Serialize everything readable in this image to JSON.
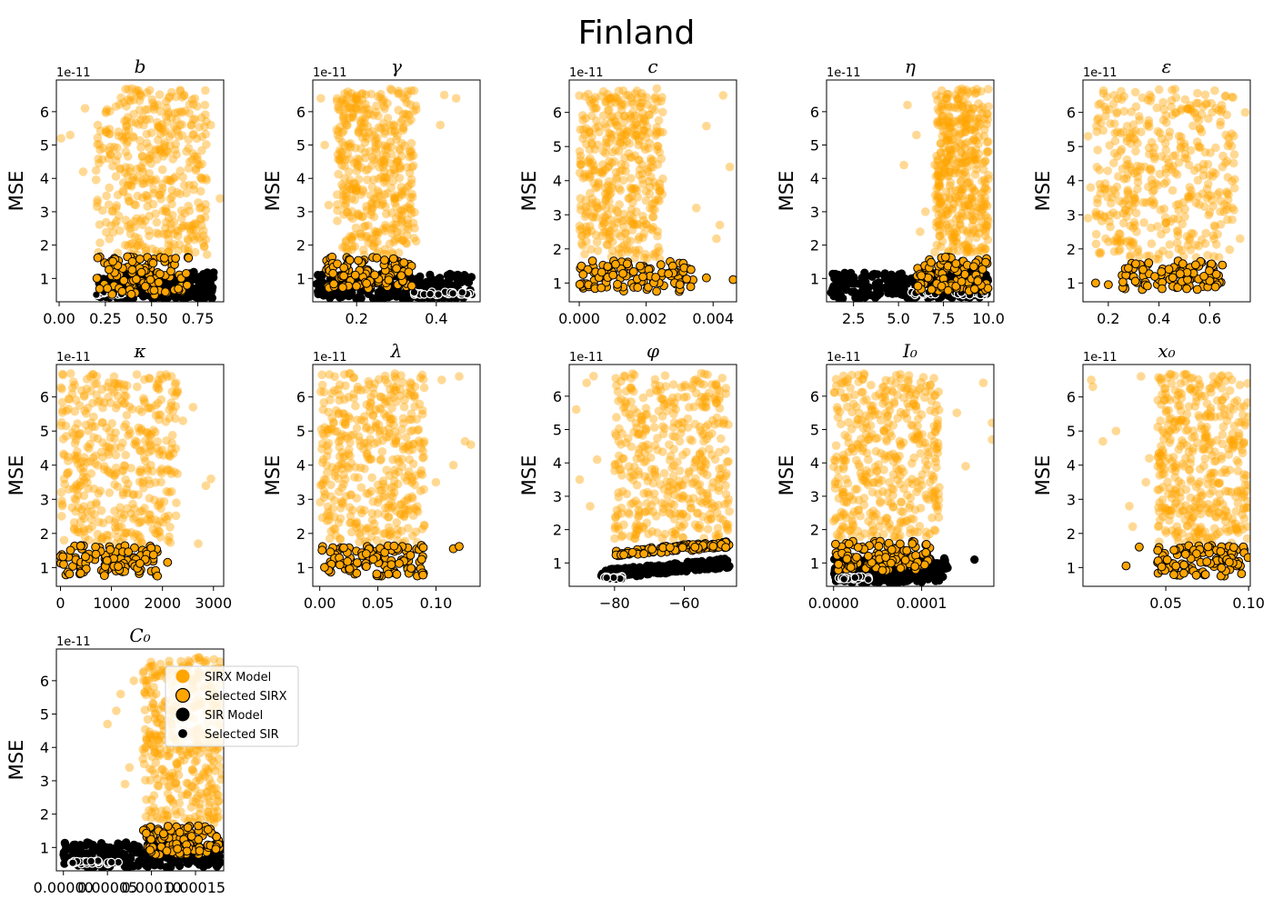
{
  "figure": {
    "title": "Finland"
  },
  "legend": {
    "placement": "right of last panel",
    "entries": [
      {
        "label": "SIRX Model",
        "marker": "large",
        "color": "#ffa500",
        "edge": "none"
      },
      {
        "label": "Selected SIRX",
        "marker": "large",
        "color": "#ffa500",
        "edge": "#000000"
      },
      {
        "label": "SIR Model",
        "marker": "large",
        "color": "#000000",
        "edge": "none"
      },
      {
        "label": "Selected SIR",
        "marker": "small",
        "color": "#000000",
        "edge": "#ffffff"
      }
    ]
  },
  "colors": {
    "sirx": "#ffa500",
    "sir": "#000000",
    "selected_sir_edge": "#ffffff",
    "axis": "#000000"
  },
  "chart_data": [
    {
      "type": "scatter",
      "title": "b",
      "ylabel": "MSE",
      "yoffset": "1e-11",
      "xlim": [
        -0.015,
        0.89
      ],
      "ylim": [
        0.3,
        6.95
      ],
      "xticks": [
        "0.00",
        "0.25",
        "0.50",
        "0.75"
      ],
      "xtick_values": [
        0,
        0.25,
        0.5,
        0.75
      ],
      "yticks": [
        "1",
        "2",
        "3",
        "4",
        "5",
        "6"
      ],
      "ytick_values": [
        1,
        2,
        3,
        4,
        5,
        6
      ],
      "sirx": {
        "x": [
          0.2,
          0.8
        ],
        "y": [
          1.7,
          6.7
        ],
        "outliers": [
          [
            0.01,
            5.2
          ],
          [
            0.06,
            5.3
          ],
          [
            0.14,
            6.1
          ],
          [
            0.13,
            4.2
          ],
          [
            0.87,
            3.4
          ],
          [
            0.82,
            5.6
          ]
        ]
      },
      "selected_sirx": {
        "x": [
          0.2,
          0.7
        ],
        "y": [
          0.5,
          1.65
        ]
      },
      "sir": {
        "x": [
          0.2,
          0.84
        ],
        "y": [
          0.4,
          1.2
        ]
      },
      "selected_sir": {
        "x": [
          0.2,
          0.37
        ],
        "y": [
          0.5,
          0.6
        ]
      }
    },
    {
      "type": "scatter",
      "title": "γ",
      "ylabel": "MSE",
      "yoffset": "1e-11",
      "xlim": [
        0.09,
        0.51
      ],
      "ylim": [
        0.3,
        6.95
      ],
      "xticks": [
        "0.2",
        "0.4"
      ],
      "xtick_values": [
        0.2,
        0.4
      ],
      "yticks": [
        "1",
        "2",
        "3",
        "4",
        "5",
        "6"
      ],
      "ytick_values": [
        1,
        2,
        3,
        4,
        5,
        6
      ],
      "sirx": {
        "x": [
          0.15,
          0.35
        ],
        "y": [
          1.7,
          6.7
        ],
        "outliers": [
          [
            0.12,
            5.0
          ],
          [
            0.11,
            6.4
          ],
          [
            0.13,
            3.2
          ],
          [
            0.42,
            6.5
          ],
          [
            0.41,
            5.6
          ],
          [
            0.45,
            6.4
          ]
        ]
      },
      "selected_sirx": {
        "x": [
          0.12,
          0.34
        ],
        "y": [
          0.7,
          1.65
        ]
      },
      "sir": {
        "x": [
          0.1,
          0.49
        ],
        "y": [
          0.4,
          1.15
        ]
      },
      "selected_sir": {
        "x": [
          0.33,
          0.5
        ],
        "y": [
          0.5,
          0.6
        ]
      }
    },
    {
      "type": "scatter",
      "title": "c",
      "ylabel": "MSE",
      "yoffset": "1e-11",
      "xlim": [
        -0.0003,
        0.0047
      ],
      "ylim": [
        0.45,
        6.95
      ],
      "xticks": [
        "0.000",
        "0.002",
        "0.004"
      ],
      "xtick_values": [
        0,
        0.002,
        0.004
      ],
      "yticks": [
        "1",
        "2",
        "3",
        "4",
        "5",
        "6"
      ],
      "ytick_values": [
        1,
        2,
        3,
        4,
        5,
        6
      ],
      "sirx": {
        "x": [
          0.0,
          0.0025
        ],
        "y": [
          1.7,
          6.7
        ],
        "outliers": [
          [
            0.0043,
            6.5
          ],
          [
            0.0045,
            4.4
          ],
          [
            0.0041,
            2.3
          ],
          [
            0.0038,
            5.6
          ],
          [
            0.0035,
            3.2
          ],
          [
            0.0042,
            2.7
          ]
        ]
      },
      "selected_sirx": {
        "x": [
          0.0,
          0.0034
        ],
        "y": [
          0.75,
          1.65
        ],
        "outliers": [
          [
            0.0046,
            1.1
          ],
          [
            0.0038,
            1.15
          ]
        ]
      },
      "sir": null,
      "selected_sir": null
    },
    {
      "type": "scatter",
      "title": "η",
      "ylabel": "MSE",
      "yoffset": "1e-11",
      "xlim": [
        1.0,
        10.3
      ],
      "ylim": [
        0.3,
        6.95
      ],
      "xticks": [
        "2.5",
        "5.0",
        "7.5",
        "10.0"
      ],
      "xtick_values": [
        2.5,
        5.0,
        7.5,
        10.0
      ],
      "yticks": [
        "1",
        "2",
        "3",
        "4",
        "5",
        "6"
      ],
      "ytick_values": [
        1,
        2,
        3,
        4,
        5,
        6
      ],
      "sirx": {
        "x": [
          7.0,
          10.0
        ],
        "y": [
          1.7,
          6.7
        ],
        "outliers": [
          [
            5.5,
            6.2
          ],
          [
            6.0,
            5.3
          ],
          [
            5.3,
            4.4
          ],
          [
            6.5,
            3.0
          ],
          [
            6.2,
            2.4
          ]
        ]
      },
      "selected_sirx": {
        "x": [
          6.0,
          10.0
        ],
        "y": [
          0.6,
          1.65
        ]
      },
      "sir": {
        "x": [
          1.2,
          10.0
        ],
        "y": [
          0.4,
          1.2
        ]
      },
      "selected_sir": {
        "x": [
          5.2,
          10.0
        ],
        "y": [
          0.5,
          0.6
        ]
      }
    },
    {
      "type": "scatter",
      "title": "ε",
      "ylabel": "MSE",
      "yoffset": "1e-11",
      "xlim": [
        0.1,
        0.76
      ],
      "ylim": [
        0.45,
        6.95
      ],
      "xticks": [
        "0.2",
        "0.4",
        "0.6"
      ],
      "xtick_values": [
        0.2,
        0.4,
        0.6
      ],
      "yticks": [
        "1",
        "2",
        "3",
        "4",
        "5",
        "6"
      ],
      "ytick_values": [
        1,
        2,
        3,
        4,
        5,
        6
      ],
      "sirx": {
        "x": [
          0.15,
          0.7
        ],
        "y": [
          1.7,
          6.7
        ],
        "outliers": [
          [
            0.74,
            6.0
          ],
          [
            0.12,
            5.3
          ],
          [
            0.13,
            3.8
          ],
          [
            0.12,
            2.9
          ],
          [
            0.72,
            2.3
          ]
        ]
      },
      "selected_sirx": {
        "x": [
          0.25,
          0.65
        ],
        "y": [
          0.8,
          1.65
        ],
        "outliers": [
          [
            0.15,
            1.0
          ],
          [
            0.2,
            0.95
          ]
        ]
      },
      "sir": null,
      "selected_sir": null
    },
    {
      "type": "scatter",
      "title": "κ",
      "ylabel": "MSE",
      "yoffset": "1e-11",
      "xlim": [
        -80,
        3200
      ],
      "ylim": [
        0.45,
        6.95
      ],
      "xticks": [
        "0",
        "1000",
        "2000",
        "3000"
      ],
      "xtick_values": [
        0,
        1000,
        2000,
        3000
      ],
      "yticks": [
        "1",
        "2",
        "3",
        "4",
        "5",
        "6"
      ],
      "ytick_values": [
        1,
        2,
        3,
        4,
        5,
        6
      ],
      "sirx": {
        "x": [
          0,
          2300
        ],
        "y": [
          1.7,
          6.7
        ],
        "outliers": [
          [
            2700,
            1.7
          ],
          [
            2850,
            3.4
          ],
          [
            2950,
            3.6
          ],
          [
            2600,
            5.7
          ],
          [
            2400,
            5.3
          ]
        ]
      },
      "selected_sirx": {
        "x": [
          0,
          1900
        ],
        "y": [
          0.75,
          1.65
        ],
        "outliers": [
          [
            2100,
            1.15
          ],
          [
            1900,
            0.75
          ]
        ]
      },
      "sir": null,
      "selected_sir": null
    },
    {
      "type": "scatter",
      "title": "λ",
      "ylabel": "MSE",
      "yoffset": "1e-11",
      "xlim": [
        -0.006,
        0.138
      ],
      "ylim": [
        0.45,
        6.95
      ],
      "xticks": [
        "0.00",
        "0.05",
        "0.10"
      ],
      "xtick_values": [
        0,
        0.05,
        0.1
      ],
      "yticks": [
        "1",
        "2",
        "3",
        "4",
        "5",
        "6"
      ],
      "ytick_values": [
        1,
        2,
        3,
        4,
        5,
        6
      ],
      "sirx": {
        "x": [
          0.0,
          0.09
        ],
        "y": [
          1.7,
          6.7
        ],
        "outliers": [
          [
            0.13,
            4.6
          ],
          [
            0.125,
            4.7
          ],
          [
            0.12,
            6.6
          ],
          [
            0.105,
            6.5
          ],
          [
            0.115,
            4.0
          ],
          [
            0.1,
            3.5
          ]
        ]
      },
      "selected_sirx": {
        "x": [
          0.0,
          0.09
        ],
        "y": [
          0.75,
          1.65
        ],
        "outliers": [
          [
            0.115,
            1.55
          ],
          [
            0.12,
            1.62
          ]
        ]
      },
      "sir": null,
      "selected_sir": null
    },
    {
      "type": "scatter",
      "title": "φ",
      "ylabel": "MSE",
      "yoffset": "1e-11",
      "xlim": [
        -93,
        -45
      ],
      "ylim": [
        0.3,
        6.95
      ],
      "xticks": [
        "−80",
        "−60"
      ],
      "xtick_values": [
        -80,
        -60
      ],
      "yticks": [
        "1",
        "2",
        "3",
        "4",
        "5",
        "6"
      ],
      "ytick_values": [
        1,
        2,
        3,
        4,
        5,
        6
      ],
      "sirx": {
        "x": [
          -80,
          -47
        ],
        "y": [
          1.7,
          6.7
        ],
        "outliers": [
          [
            -91,
            5.6
          ],
          [
            -90,
            3.5
          ],
          [
            -88,
            6.4
          ],
          [
            -86,
            6.6
          ],
          [
            -87,
            2.7
          ],
          [
            -85,
            4.1
          ]
        ]
      },
      "selected_sirx": {
        "x": [
          -80,
          -47
        ],
        "y": [
          1.2,
          1.65
        ],
        "trend": "rising"
      },
      "sir": {
        "x": [
          -84,
          -47
        ],
        "y": [
          0.5,
          1.15
        ],
        "trend": "rising"
      },
      "selected_sir": {
        "x": [
          -83,
          -77
        ],
        "y": [
          0.5,
          0.6
        ]
      }
    },
    {
      "type": "scatter",
      "title": "I₀",
      "ylabel": "MSE",
      "yoffset": "1e-11",
      "xlim": [
        -8e-06,
        0.000182
      ],
      "ylim": [
        0.3,
        6.95
      ],
      "xticks": [
        "0.0000",
        "0.0001"
      ],
      "xtick_values": [
        0,
        0.0001
      ],
      "yticks": [
        "1",
        "2",
        "3",
        "4",
        "5",
        "6"
      ],
      "ytick_values": [
        1,
        2,
        3,
        4,
        5,
        6
      ],
      "sirx": {
        "x": [
          0.0,
          0.00012
        ],
        "y": [
          1.7,
          6.7
        ],
        "outliers": [
          [
            0.00018,
            5.2
          ],
          [
            0.00018,
            4.7
          ],
          [
            0.00017,
            6.4
          ],
          [
            0.00015,
            3.9
          ],
          [
            0.00014,
            5.5
          ]
        ]
      },
      "selected_sirx": {
        "x": [
          0.0,
          0.00011
        ],
        "y": [
          0.75,
          1.65
        ]
      },
      "sir": {
        "x": [
          0.0,
          0.00013
        ],
        "y": [
          0.4,
          1.15
        ],
        "outliers": [
          [
            0.00016,
            1.1
          ]
        ]
      },
      "selected_sir": {
        "x": [
          5e-06,
          4e-05
        ],
        "y": [
          0.5,
          0.6
        ]
      }
    },
    {
      "type": "scatter",
      "title": "x₀",
      "ylabel": "MSE",
      "yoffset": "1e-11",
      "xlim": [
        0.0,
        0.101
      ],
      "ylim": [
        0.45,
        6.95
      ],
      "xticks": [
        "0.05",
        "0.10"
      ],
      "xtick_values": [
        0.05,
        0.1
      ],
      "yticks": [
        "1",
        "2",
        "3",
        "4",
        "5",
        "6"
      ],
      "ytick_values": [
        1,
        2,
        3,
        4,
        5,
        6
      ],
      "sirx": {
        "x": [
          0.045,
          0.1
        ],
        "y": [
          1.7,
          6.7
        ],
        "outliers": [
          [
            0.005,
            6.5
          ],
          [
            0.006,
            6.3
          ],
          [
            0.012,
            4.7
          ],
          [
            0.02,
            5.0
          ],
          [
            0.035,
            6.6
          ],
          [
            0.04,
            4.2
          ],
          [
            0.028,
            2.8
          ],
          [
            0.03,
            2.2
          ],
          [
            0.038,
            3.5
          ]
        ]
      },
      "selected_sirx": {
        "x": [
          0.045,
          0.1
        ],
        "y": [
          0.75,
          1.65
        ],
        "outliers": [
          [
            0.026,
            1.05
          ],
          [
            0.034,
            1.6
          ]
        ]
      },
      "sir": null,
      "selected_sir": null
    },
    {
      "type": "scatter",
      "title": "C₀",
      "ylabel": "MSE",
      "yoffset": "1e-11",
      "xlim": [
        -8e-06,
        0.000182
      ],
      "ylim": [
        0.3,
        6.95
      ],
      "xticks": [
        "0.00000",
        "0.00005",
        "0.00010",
        "0.00015"
      ],
      "xtick_values": [
        0,
        5e-05,
        0.0001,
        0.00015
      ],
      "yticks": [
        "1",
        "2",
        "3",
        "4",
        "5",
        "6"
      ],
      "ytick_values": [
        1,
        2,
        3,
        4,
        5,
        6
      ],
      "sirx": {
        "x": [
          9e-05,
          0.00018
        ],
        "y": [
          1.7,
          6.7
        ],
        "outliers": [
          [
            5e-05,
            4.7
          ],
          [
            6e-05,
            5.1
          ],
          [
            7e-05,
            2.9
          ],
          [
            7.5e-05,
            3.4
          ],
          [
            8e-05,
            6.0
          ],
          [
            6.5e-05,
            5.6
          ]
        ]
      },
      "selected_sirx": {
        "x": [
          9e-05,
          0.00018
        ],
        "y": [
          0.75,
          1.65
        ]
      },
      "sir": {
        "x": [
          0.0,
          0.00018
        ],
        "y": [
          0.4,
          1.15
        ]
      },
      "selected_sir": {
        "x": [
          0.0,
          7e-05
        ],
        "y": [
          0.5,
          0.6
        ]
      }
    }
  ]
}
